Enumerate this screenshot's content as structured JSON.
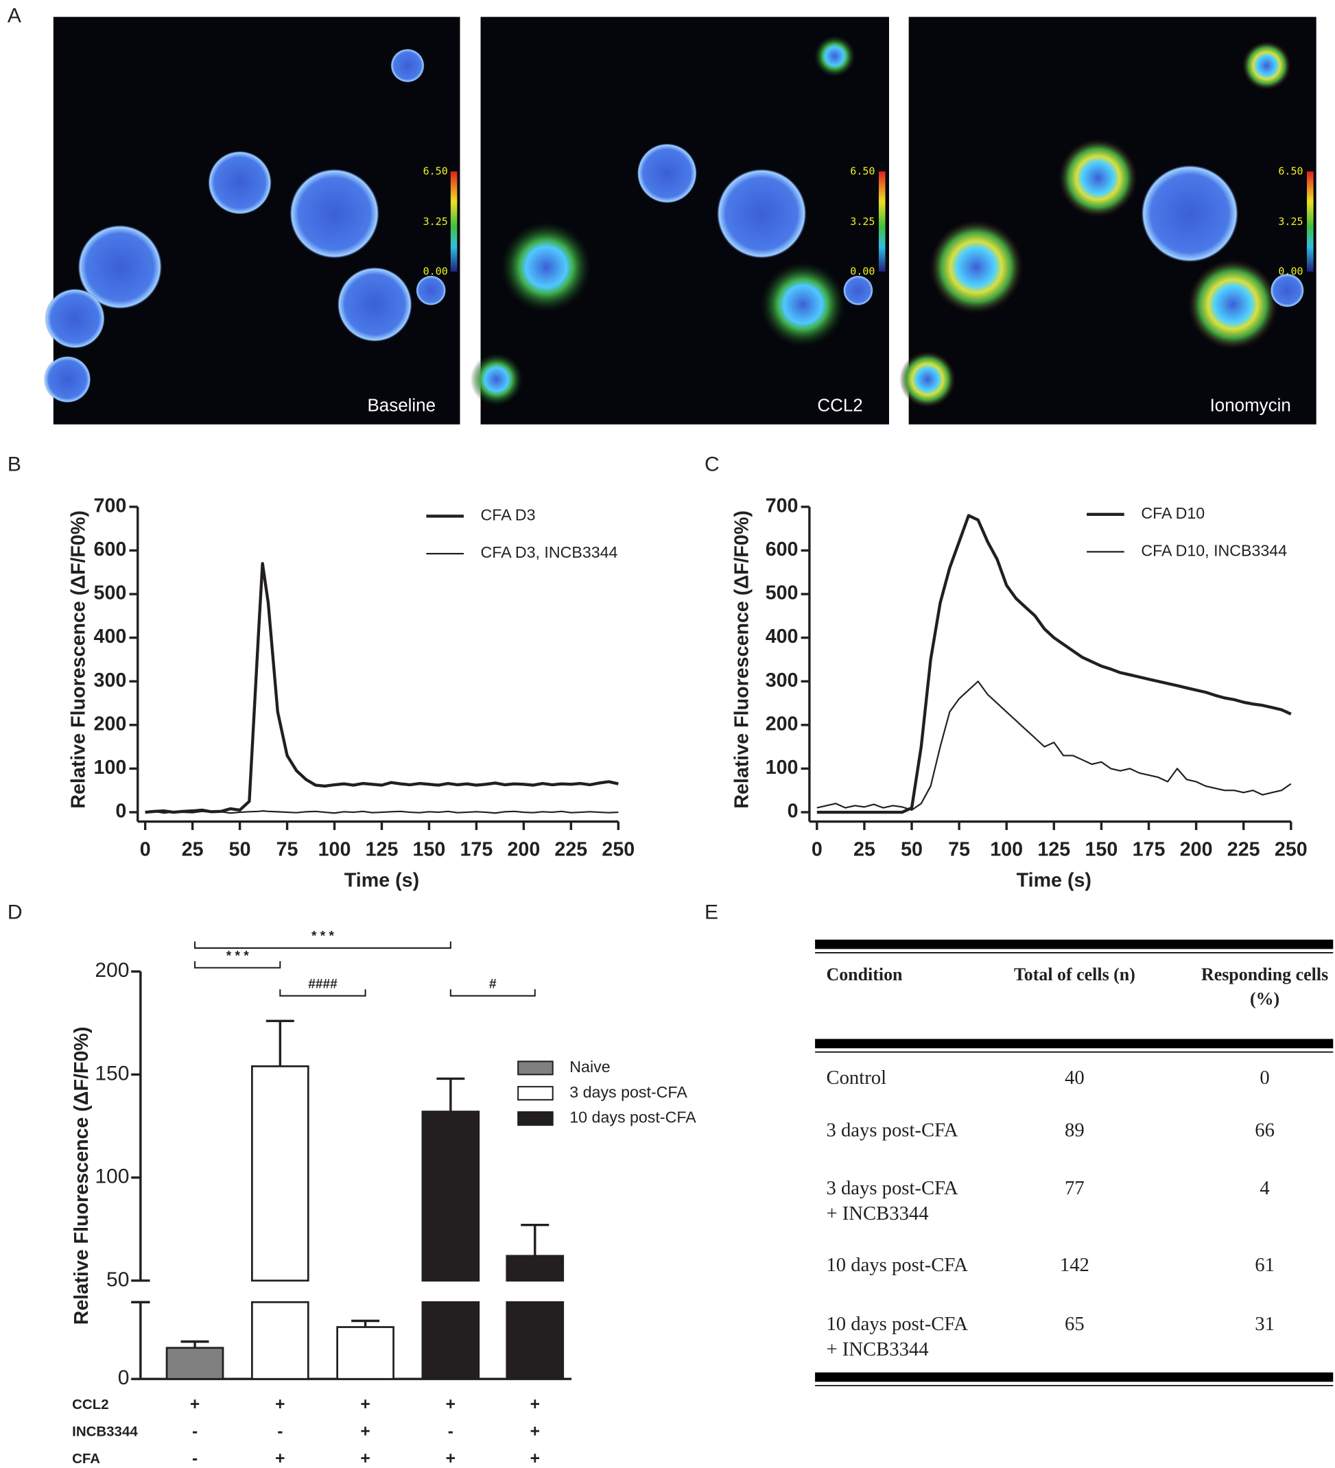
{
  "panel_labels": [
    "A",
    "B",
    "C",
    "D",
    "E"
  ],
  "images": {
    "labels": [
      "Baseline",
      "CCL2",
      "Ionomycin"
    ],
    "colorbar_ticks": [
      "6.50",
      "3.25",
      "0.00"
    ]
  },
  "chart_data": [
    {
      "type": "line",
      "x_label": "Time (s)",
      "y_label": "Relative Fluorescence (ΔF/F0%)",
      "x": [
        0,
        5,
        10,
        15,
        20,
        25,
        30,
        35,
        40,
        45,
        50,
        55,
        60,
        62,
        65,
        70,
        75,
        80,
        85,
        90,
        95,
        100,
        105,
        110,
        115,
        120,
        125,
        130,
        135,
        140,
        145,
        150,
        155,
        160,
        165,
        170,
        175,
        180,
        185,
        190,
        195,
        200,
        205,
        210,
        215,
        220,
        225,
        230,
        235,
        240,
        245,
        250
      ],
      "series": [
        {
          "name": "CFA D3",
          "color": "#231f20",
          "line_width": 3.2,
          "values": [
            0,
            2,
            3,
            0,
            2,
            3,
            5,
            1,
            2,
            8,
            5,
            25,
            420,
            570,
            480,
            230,
            130,
            95,
            75,
            62,
            60,
            63,
            65,
            62,
            66,
            64,
            62,
            68,
            65,
            63,
            66,
            64,
            62,
            66,
            63,
            65,
            62,
            64,
            67,
            63,
            65,
            64,
            62,
            66,
            63,
            65,
            64,
            66,
            63,
            67,
            70,
            65
          ]
        },
        {
          "name": "CFA D3, INCB3344",
          "color": "#231f20",
          "line_width": 1.6,
          "values": [
            0,
            2,
            -2,
            1,
            0,
            -1,
            2,
            0,
            1,
            -2,
            0,
            1,
            2,
            3,
            2,
            1,
            0,
            -1,
            1,
            2,
            0,
            -2,
            1,
            0,
            2,
            -1,
            0,
            1,
            2,
            0,
            -1,
            1,
            0,
            2,
            -1,
            0,
            1,
            0,
            -2,
            1,
            2,
            0,
            -1,
            1,
            0,
            2,
            -1,
            0,
            1,
            0,
            -1,
            0
          ]
        }
      ],
      "xlim": [
        0,
        250
      ],
      "ylim": [
        0,
        700
      ],
      "xticks": [
        0,
        25,
        50,
        75,
        100,
        125,
        150,
        175,
        200,
        225,
        250
      ],
      "yticks": [
        0,
        100,
        200,
        300,
        400,
        500,
        600,
        700
      ]
    },
    {
      "type": "line",
      "x_label": "Time (s)",
      "y_label": "Relative Fluorescence (ΔF/F0%)",
      "x": [
        0,
        5,
        10,
        15,
        20,
        25,
        30,
        35,
        40,
        45,
        50,
        55,
        60,
        65,
        70,
        75,
        80,
        85,
        90,
        95,
        100,
        105,
        110,
        115,
        120,
        125,
        130,
        135,
        140,
        145,
        150,
        155,
        160,
        165,
        170,
        175,
        180,
        185,
        190,
        195,
        200,
        205,
        210,
        215,
        220,
        225,
        230,
        235,
        240,
        245,
        250
      ],
      "series": [
        {
          "name": "CFA D10",
          "color": "#231f20",
          "line_width": 3.2,
          "values": [
            0,
            0,
            0,
            0,
            0,
            0,
            0,
            0,
            0,
            0,
            10,
            150,
            350,
            480,
            560,
            620,
            680,
            670,
            620,
            580,
            520,
            490,
            470,
            450,
            420,
            400,
            385,
            370,
            355,
            345,
            335,
            328,
            320,
            315,
            310,
            305,
            300,
            295,
            290,
            285,
            280,
            275,
            268,
            262,
            258,
            252,
            248,
            245,
            240,
            235,
            225
          ]
        },
        {
          "name": "CFA D10, INCB3344",
          "color": "#231f20",
          "line_width": 1.6,
          "values": [
            10,
            15,
            20,
            10,
            15,
            12,
            18,
            10,
            15,
            12,
            5,
            20,
            60,
            150,
            230,
            260,
            280,
            300,
            270,
            250,
            230,
            210,
            190,
            170,
            150,
            160,
            130,
            130,
            120,
            110,
            115,
            100,
            95,
            100,
            90,
            85,
            80,
            70,
            100,
            75,
            70,
            60,
            55,
            50,
            50,
            45,
            50,
            40,
            45,
            50,
            65
          ]
        }
      ],
      "xlim": [
        0,
        250
      ],
      "ylim": [
        0,
        700
      ],
      "xticks": [
        0,
        25,
        50,
        75,
        100,
        125,
        150,
        175,
        200,
        225,
        250
      ],
      "yticks": [
        0,
        100,
        200,
        300,
        400,
        500,
        600,
        700
      ]
    },
    {
      "type": "bar",
      "y_label": "Relative Fluorescence (ΔF/F0%)",
      "categories": [
        null,
        null,
        null,
        null,
        null
      ],
      "series": [
        {
          "name": "Naive",
          "color": "#808080",
          "values": [
            15,
            null,
            null,
            null,
            null
          ],
          "errors": [
            3,
            null,
            null,
            null,
            null
          ]
        },
        {
          "name": "3 days post-CFA",
          "color": "#ffffff",
          "values": [
            null,
            154,
            25,
            null,
            null
          ],
          "errors": [
            null,
            22,
            3,
            null,
            null
          ]
        },
        {
          "name": "10 days post-CFA",
          "color": "#231f20",
          "values": [
            null,
            null,
            null,
            132,
            62
          ],
          "errors": [
            null,
            null,
            null,
            16,
            15
          ]
        }
      ],
      "ylim": [
        0,
        200
      ],
      "ybreak": [
        37,
        50
      ],
      "yticks": [
        0,
        50,
        100,
        150,
        200
      ],
      "conditions": [
        {
          "name": "CCL2",
          "signs": [
            "+",
            "+",
            "+",
            "+",
            "+"
          ]
        },
        {
          "name": "INCB3344",
          "signs": [
            "-",
            "-",
            "+",
            "-",
            "+"
          ]
        },
        {
          "name": "CFA",
          "signs": [
            "-",
            "+",
            "+",
            "+",
            "+"
          ]
        }
      ],
      "brackets": [
        {
          "from": 0,
          "to": 3,
          "label": "* * *"
        },
        {
          "from": 0,
          "to": 1,
          "label": "* * *"
        },
        {
          "from": 1,
          "to": 2,
          "label": "####"
        },
        {
          "from": 3,
          "to": 4,
          "label": "#"
        }
      ]
    }
  ],
  "table": {
    "header": [
      [
        "Condition"
      ],
      [
        "Total of cells (n)"
      ],
      [
        "Responding cells",
        "(%)"
      ]
    ],
    "rows": [
      [
        [
          "Control"
        ],
        [
          "40"
        ],
        [
          "0"
        ]
      ],
      [
        [
          "3 days post-CFA"
        ],
        [
          "89"
        ],
        [
          "66"
        ]
      ],
      [
        [
          "3 days post-CFA",
          "+ INCB3344"
        ],
        [
          "77"
        ],
        [
          "4"
        ]
      ],
      [
        [
          "10 days post-CFA"
        ],
        [
          "142"
        ],
        [
          "61"
        ]
      ],
      [
        [
          "10 days post-CFA",
          "+ INCB3344"
        ],
        [
          "65"
        ],
        [
          "31"
        ]
      ]
    ]
  }
}
